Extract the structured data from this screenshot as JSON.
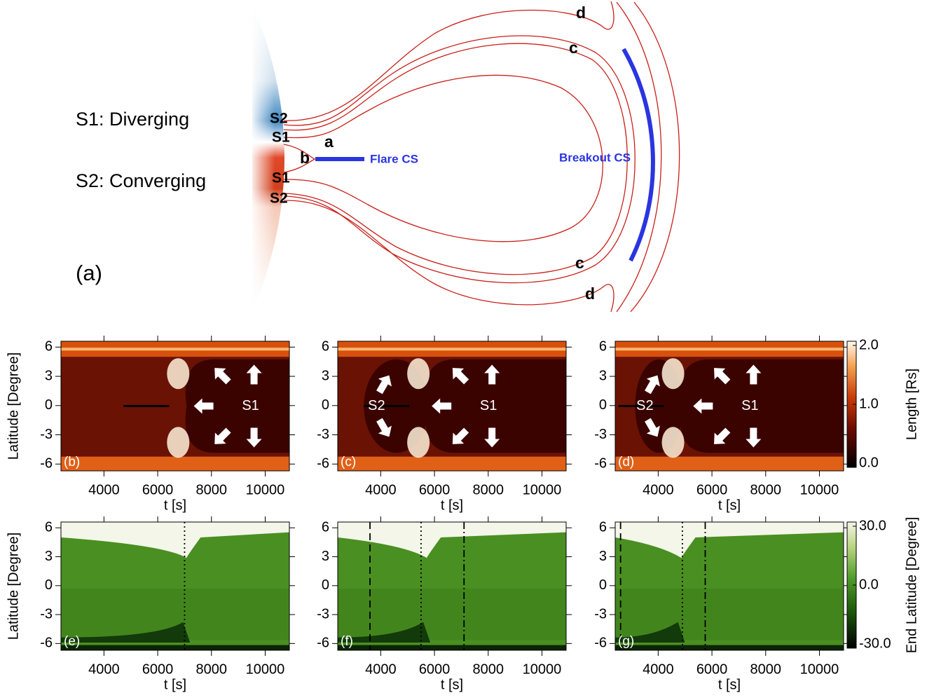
{
  "diagram": {
    "s1_caption": "S1: Diverging",
    "s2_caption": "S2: Converging",
    "tag": "(a)",
    "footpoints": [
      "S2",
      "S1",
      "S1",
      "S2"
    ],
    "line_labels": [
      "a",
      "b",
      "c",
      "d",
      "c",
      "d"
    ],
    "flare_cs": "Flare CS",
    "breakout_cs": "Breakout CS"
  },
  "axes": {
    "xlabel": "t [s]",
    "ylabel": "Latitude [Degree]",
    "xlim": [
      2400,
      10900
    ],
    "ylim": [
      -6.7,
      6.6
    ],
    "xticks": [
      4000,
      6000,
      8000,
      10000
    ],
    "yticks": [
      6,
      3,
      0,
      -3,
      -6
    ]
  },
  "panels": [
    {
      "tag": "(b)",
      "region_labels": [
        "S1"
      ]
    },
    {
      "tag": "(c)",
      "region_labels": [
        "S2",
        "S1"
      ]
    },
    {
      "tag": "(d)",
      "region_labels": [
        "S2",
        "S1"
      ]
    },
    {
      "tag": "(e)",
      "markers": [
        {
          "t": 7000,
          "style": "dotted"
        }
      ]
    },
    {
      "tag": "(f)",
      "markers": [
        {
          "t": 3600,
          "style": "dashed"
        },
        {
          "t": 5500,
          "style": "dotted"
        },
        {
          "t": 7100,
          "style": "dashdot"
        }
      ]
    },
    {
      "tag": "(g)",
      "markers": [
        {
          "t": 2600,
          "style": "dashed"
        },
        {
          "t": 4900,
          "style": "dotted"
        },
        {
          "t": 5750,
          "style": "dashdot"
        }
      ]
    }
  ],
  "colorbars": [
    {
      "label": "Length [Rs]",
      "ticks": [
        "2.0",
        "1.0",
        "0.0"
      ]
    },
    {
      "label": "End Latitude [Degree]",
      "ticks": [
        "30.0",
        "0.0",
        "-30.0"
      ]
    }
  ]
}
